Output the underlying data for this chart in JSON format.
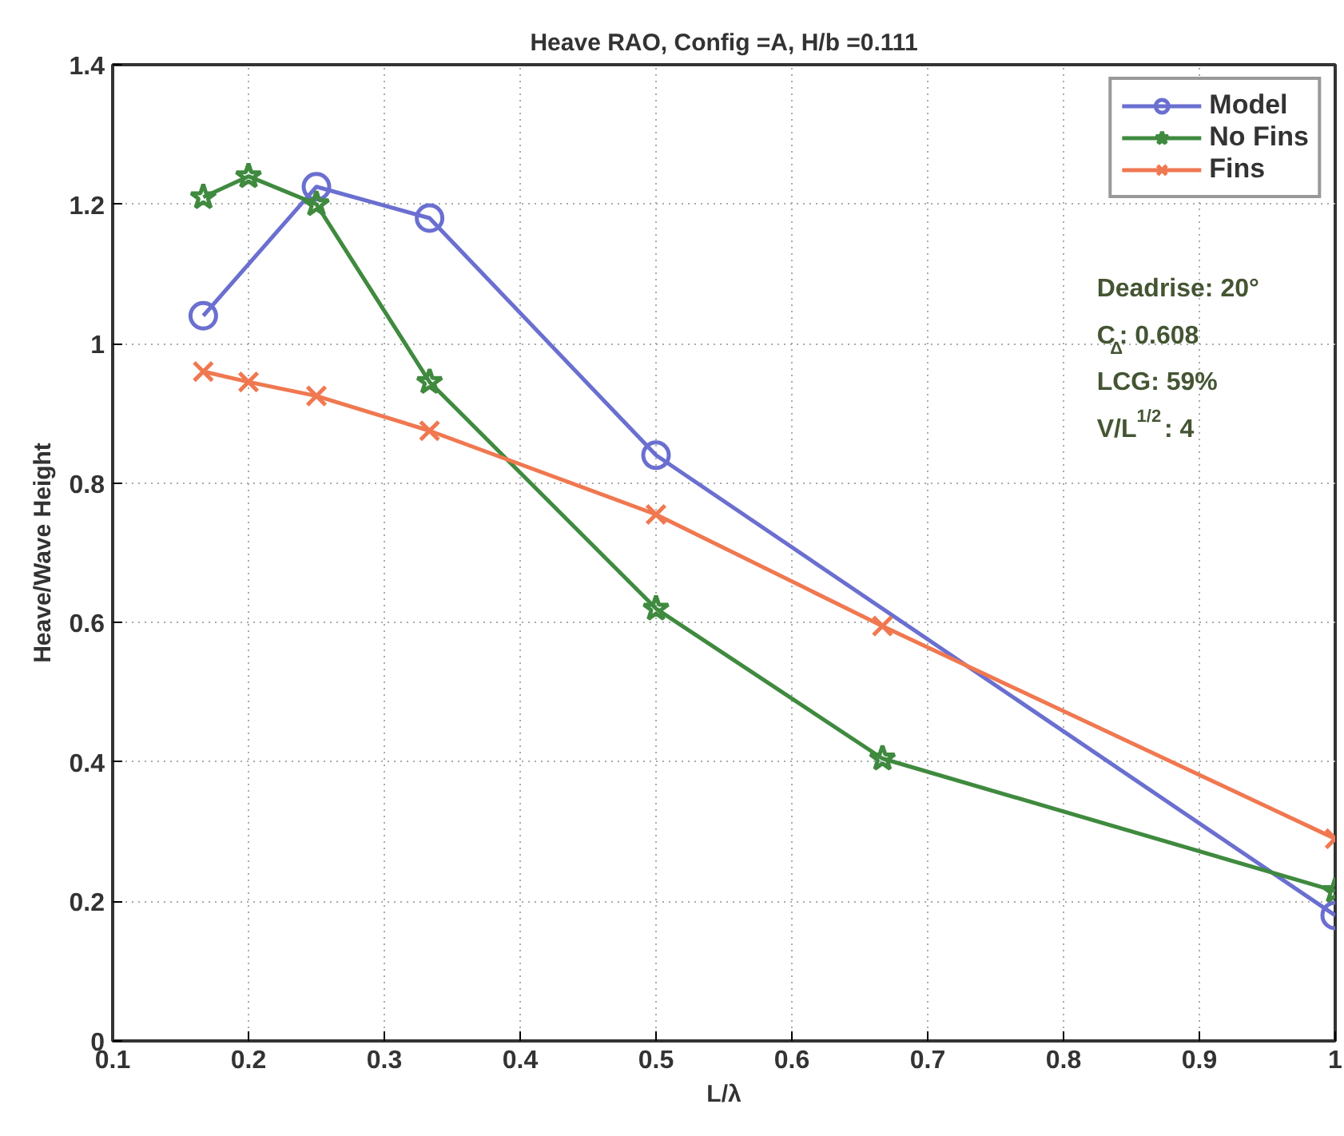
{
  "chart_data": {
    "type": "line",
    "title": "Heave RAO, Config =A, H/b =0.111",
    "xlabel": "L/λ",
    "ylabel": "Heave/Wave Height",
    "x": [
      0.1667,
      0.2,
      0.25,
      0.3333,
      0.5,
      0.6667,
      1.0
    ],
    "series": [
      {
        "name": "Model",
        "color": "#6a6fd0",
        "marker": "circle",
        "values": [
          1.04,
          null,
          1.225,
          1.18,
          0.84,
          null,
          0.18
        ]
      },
      {
        "name": "No Fins",
        "color": "#3f8a3f",
        "marker": "star",
        "values": [
          1.21,
          1.24,
          1.2,
          0.945,
          0.62,
          0.405,
          0.215
        ]
      },
      {
        "name": "Fins",
        "color": "#f07850",
        "marker": "cross",
        "values": [
          0.96,
          0.945,
          0.925,
          0.875,
          0.755,
          0.595,
          0.29
        ]
      }
    ],
    "xlim": [
      0.1,
      1.0
    ],
    "ylim": [
      0,
      1.4
    ],
    "xticks": [
      0.1,
      0.2,
      0.3,
      0.4,
      0.5,
      0.6,
      0.7,
      0.8,
      0.9,
      1
    ],
    "yticks": [
      0,
      0.2,
      0.4,
      0.6,
      0.8,
      1,
      1.2,
      1.4
    ],
    "annotations": [
      "Deadrise: 20°",
      "C$_{Δ}$: 0.608",
      "LCG: 59%",
      "V/L$^{1/2}$: 4"
    ],
    "grid": true,
    "legend": "top right",
    "line_style": "solid"
  }
}
